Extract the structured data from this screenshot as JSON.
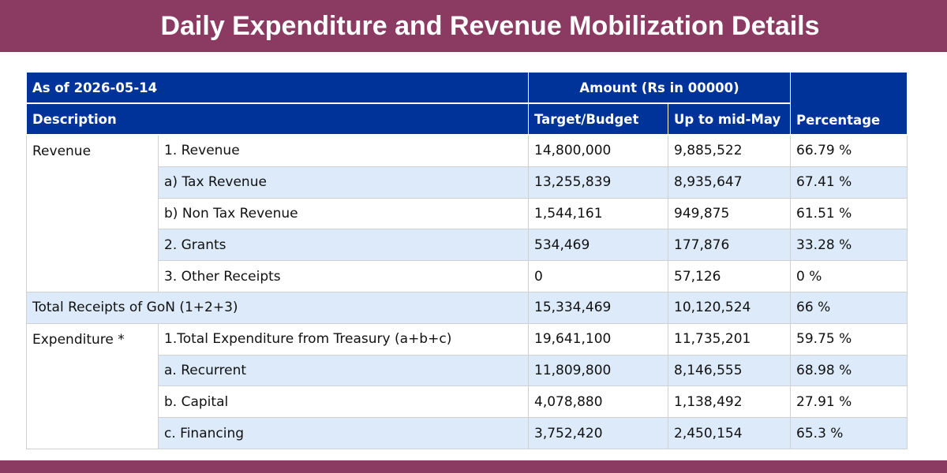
{
  "header": {
    "title": "Daily Expenditure and Revenue Mobilization Details"
  },
  "colors": {
    "banner": "#8b3a62",
    "table_header": "#003399",
    "row_alt": "#dceaf9"
  },
  "table": {
    "as_of_label": "As of  2026-05-14",
    "amount_header": "Amount (Rs in 00000)",
    "description_header": "Description",
    "target_header": "Target/Budget",
    "upto_header": "Up to mid-May",
    "percentage_header": "Percentage",
    "revenue_group": "Revenue",
    "total_label": "Total Receipts of GoN (1+2+3)",
    "expenditure_group": "Expenditure *",
    "revenue_rows": [
      {
        "label": "1. Revenue",
        "target": "14,800,000",
        "upto": "9,885,522",
        "pct": "66.79 %"
      },
      {
        "label": "a) Tax Revenue",
        "target": "13,255,839",
        "upto": "8,935,647",
        "pct": "67.41 %"
      },
      {
        "label": "b) Non Tax Revenue",
        "target": "1,544,161",
        "upto": "949,875",
        "pct": "61.51 %"
      },
      {
        "label": "2. Grants",
        "target": "534,469",
        "upto": "177,876",
        "pct": "33.28 %"
      },
      {
        "label": "3. Other Receipts",
        "target": "0",
        "upto": "57,126",
        "pct": "0 %"
      }
    ],
    "total_row": {
      "target": "15,334,469",
      "upto": "10,120,524",
      "pct": "66 %"
    },
    "expenditure_rows": [
      {
        "label": "1.Total Expenditure from Treasury (a+b+c)",
        "target": "19,641,100",
        "upto": "11,735,201",
        "pct": "59.75 %"
      },
      {
        "label": "a. Recurrent",
        "target": "11,809,800",
        "upto": "8,146,555",
        "pct": "68.98 %"
      },
      {
        "label": "b. Capital",
        "target": "4,078,880",
        "upto": "1,138,492",
        "pct": "27.91 %"
      },
      {
        "label": "c. Financing",
        "target": "3,752,420",
        "upto": "2,450,154",
        "pct": "65.3 %"
      }
    ]
  }
}
